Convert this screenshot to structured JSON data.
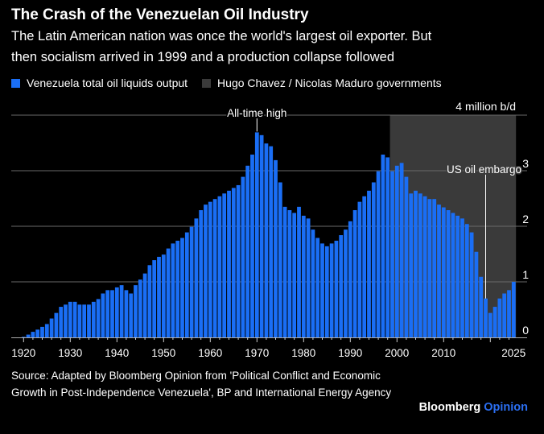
{
  "chart_data": {
    "type": "bar",
    "title": "The Crash of the Venezuelan Oil Industry",
    "subtitle": [
      "The Latin American nation was once the world's largest oil exporter. But",
      "then socialism arrived in 1999 and a production collapse followed"
    ],
    "legend": [
      "Venezuela total oil liquids output",
      "Hugo Chavez / Nicolas Maduro governments"
    ],
    "ylabel": "4 million b/d",
    "ylim": [
      0,
      4
    ],
    "yticks": [
      "0",
      "1",
      "2",
      "3"
    ],
    "xticks": [
      "1920",
      "1930",
      "1940",
      "1950",
      "1960",
      "1970",
      "1980",
      "1990",
      "2000",
      "2010",
      "2025"
    ],
    "x_start": 1920,
    "values": [
      0.01,
      0.05,
      0.1,
      0.14,
      0.19,
      0.24,
      0.34,
      0.44,
      0.55,
      0.59,
      0.64,
      0.64,
      0.59,
      0.59,
      0.59,
      0.64,
      0.69,
      0.79,
      0.85,
      0.85,
      0.9,
      0.94,
      0.85,
      0.79,
      0.94,
      1.04,
      1.15,
      1.3,
      1.39,
      1.45,
      1.49,
      1.6,
      1.69,
      1.74,
      1.79,
      1.89,
      1.99,
      2.14,
      2.29,
      2.39,
      2.44,
      2.49,
      2.54,
      2.59,
      2.64,
      2.69,
      2.74,
      2.89,
      3.09,
      3.29,
      3.69,
      3.64,
      3.49,
      3.44,
      3.19,
      2.79,
      2.35,
      2.29,
      2.24,
      2.35,
      2.19,
      2.14,
      1.94,
      1.79,
      1.69,
      1.64,
      1.69,
      1.74,
      1.84,
      1.94,
      2.09,
      2.29,
      2.44,
      2.54,
      2.64,
      2.79,
      2.99,
      3.29,
      3.24,
      2.99,
      3.09,
      3.14,
      2.89,
      2.59,
      2.64,
      2.59,
      2.54,
      2.49,
      2.49,
      2.39,
      2.34,
      2.29,
      2.24,
      2.19,
      2.14,
      2.04,
      1.89,
      1.54,
      1.09,
      0.7,
      0.44,
      0.55,
      0.7,
      0.79,
      0.85,
      1.0
    ],
    "shaded_period": [
      1999,
      2025
    ],
    "annotations": [
      {
        "text": "All-time high",
        "year": 1970
      },
      {
        "text": "US oil embargo",
        "year": 2019
      }
    ],
    "grid": true,
    "legend_placement": "top-left",
    "colors": {
      "bar": "#1a6ef5",
      "shade": "#3a3a3a",
      "grid": "#6a6a6a",
      "background": "#000000"
    }
  },
  "footer": {
    "source": "Source: Adapted by Bloomberg Opinion from 'Political Conflict and Economic Growth in Post-Independence Venezuela', BP and International Energy Agency",
    "brand_1": "Bloomberg",
    "brand_2": "Opinion",
    "brand_color": "#2b6ff2"
  }
}
